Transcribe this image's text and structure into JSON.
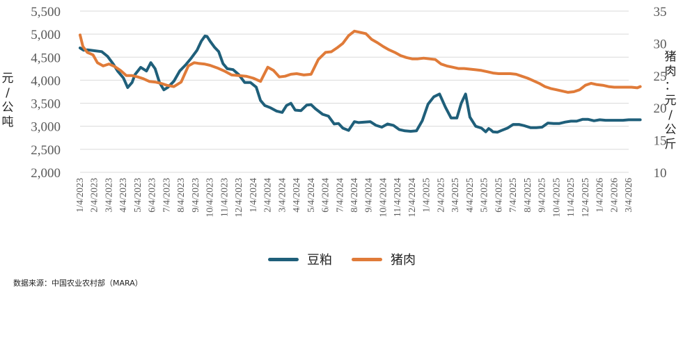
{
  "chart_data": {
    "type": "line",
    "y_left": {
      "label": "元/公吨",
      "ticks": [
        "5,500",
        "5,000",
        "4,500",
        "4,000",
        "3,500",
        "3,000",
        "2,500",
        "2,000"
      ],
      "range": [
        2000,
        5500
      ]
    },
    "y_right": {
      "label": "猪肉：元/公斤",
      "ticks": [
        "35",
        "30",
        "25",
        "20",
        "15",
        "10"
      ],
      "range": [
        10,
        35
      ]
    },
    "x_ticks": [
      "1/4/2023",
      "2/4/2023",
      "3/4/2023",
      "4/4/2023",
      "5/4/2023",
      "6/4/2023",
      "7/4/2023",
      "8/4/2023",
      "9/4/2023",
      "10/4/2023",
      "11/4/2023",
      "12/4/2023",
      "1/4/2024",
      "2/4/2024",
      "3/4/2024",
      "4/4/2024",
      "5/4/2024",
      "6/4/2024",
      "7/4/2024",
      "8/4/2024",
      "9/4/2024",
      "10/4/2024",
      "11/4/2024",
      "12/4/2024",
      "1/4/2025",
      "2/4/2025",
      "3/4/2025",
      "4/4/2025",
      "5/4/2025",
      "6/4/2025",
      "7/4/2025",
      "8/4/2025",
      "9/4/2025",
      "10/4/2025",
      "11/4/2025",
      "12/4/2025",
      "1/4/2026",
      "2/4/2026",
      "3/4/2026"
    ],
    "series": [
      {
        "name": "豆粕",
        "axis": "left",
        "color": "#1f5f7a",
        "x": [
          0,
          0.25,
          0.5,
          1,
          1.5,
          1.9,
          2.3,
          2.6,
          3,
          3.3,
          3.6,
          3.8,
          4.2,
          4.6,
          4.9,
          5.2,
          5.5,
          5.8,
          6.1,
          6.5,
          6.9,
          7.3,
          7.7,
          8.1,
          8.4,
          8.65,
          8.8,
          9,
          9.3,
          9.6,
          9.9,
          10.2,
          10.6,
          11,
          11.4,
          11.8,
          12.2,
          12.5,
          12.8,
          13.2,
          13.6,
          14,
          14.3,
          14.6,
          14.9,
          15.3,
          15.7,
          16,
          16.3,
          16.8,
          17.2,
          17.6,
          17.9,
          18.2,
          18.6,
          19,
          19.3,
          19.7,
          20.1,
          20.5,
          20.9,
          21.3,
          21.7,
          22.1,
          22.5,
          22.9,
          23.3,
          23.7,
          24.1,
          24.5,
          24.9,
          25.3,
          25.7,
          26.1,
          26.4,
          26.7,
          27,
          27.4,
          27.8,
          28.1,
          28.3,
          28.45,
          28.6,
          28.9,
          29.2,
          29.6,
          30,
          30.4,
          30.8,
          31.2,
          31.6,
          32,
          32.4,
          32.8,
          33.2,
          33.6,
          34,
          34.4,
          34.8,
          35.2,
          35.6,
          36,
          36.4,
          36.8,
          37.2,
          37.6,
          38,
          38.4,
          38.8
        ],
        "values": [
          4700,
          4650,
          4660,
          4640,
          4620,
          4520,
          4350,
          4200,
          4050,
          3840,
          3950,
          4120,
          4280,
          4200,
          4380,
          4250,
          3950,
          3790,
          3850,
          3980,
          4200,
          4330,
          4480,
          4650,
          4850,
          4960,
          4950,
          4850,
          4720,
          4620,
          4360,
          4250,
          4230,
          4120,
          3950,
          3950,
          3850,
          3560,
          3450,
          3400,
          3330,
          3300,
          3450,
          3500,
          3350,
          3340,
          3460,
          3470,
          3380,
          3260,
          3220,
          3050,
          3060,
          2960,
          2910,
          3100,
          3080,
          3090,
          3100,
          3020,
          2980,
          3050,
          3020,
          2930,
          2900,
          2890,
          2900,
          3120,
          3480,
          3640,
          3700,
          3420,
          3180,
          3180,
          3500,
          3700,
          3200,
          3000,
          2960,
          2880,
          2950,
          2920,
          2880,
          2870,
          2910,
          2960,
          3040,
          3040,
          3010,
          2970,
          2970,
          2980,
          3070,
          3060,
          3060,
          3090,
          3110,
          3110,
          3150,
          3150,
          3120,
          3140,
          3130,
          3130,
          3130,
          3130,
          3140,
          3140,
          3140
        ]
      },
      {
        "name": "猪肉",
        "axis": "right",
        "color": "#e07b39",
        "x": [
          0,
          0.2,
          0.5,
          0.9,
          1.2,
          1.6,
          2,
          2.4,
          2.8,
          3.2,
          3.6,
          4,
          4.4,
          4.8,
          5.2,
          5.6,
          6,
          6.5,
          7,
          7.5,
          7.9,
          8.2,
          8.6,
          9,
          9.5,
          10,
          10.5,
          11,
          11.5,
          12,
          12.5,
          13,
          13.4,
          13.8,
          14.2,
          14.6,
          15,
          15.5,
          16,
          16.5,
          17,
          17.4,
          17.8,
          18.2,
          18.6,
          19,
          19.4,
          19.8,
          20.2,
          20.6,
          21,
          21.4,
          21.8,
          22.2,
          22.6,
          23,
          23.4,
          23.8,
          24.2,
          24.6,
          25,
          25.4,
          25.8,
          26.2,
          26.6,
          27,
          27.4,
          27.8,
          28.2,
          28.6,
          29,
          29.4,
          29.8,
          30.2,
          30.6,
          31,
          31.4,
          31.8,
          32.2,
          32.6,
          33,
          33.4,
          33.8,
          34.2,
          34.6,
          35,
          35.4,
          35.8,
          36.2,
          36.6,
          37,
          37.4,
          37.8,
          38.2,
          38.6,
          38.8
        ],
        "values": [
          31.3,
          29.5,
          28.6,
          28.2,
          27,
          26.5,
          26.8,
          26.4,
          25.8,
          25,
          25,
          24.8,
          24.5,
          24.1,
          24,
          23.8,
          23.5,
          23.3,
          24,
          26.5,
          27,
          26.9,
          26.8,
          26.6,
          26.2,
          25.7,
          25.1,
          25,
          24.9,
          24.6,
          24.1,
          26.3,
          25.8,
          24.8,
          24.9,
          25.2,
          25.3,
          25.1,
          25.2,
          27.5,
          28.6,
          28.7,
          29.3,
          30,
          31.2,
          31.9,
          31.7,
          31.5,
          30.6,
          30.1,
          29.5,
          29,
          28.6,
          28.1,
          27.8,
          27.6,
          27.6,
          27.7,
          27.6,
          27.5,
          26.8,
          26.5,
          26.3,
          26.1,
          26.1,
          26,
          25.9,
          25.8,
          25.6,
          25.4,
          25.3,
          25.3,
          25.3,
          25.2,
          24.9,
          24.6,
          24.2,
          23.8,
          23.3,
          23,
          22.8,
          22.6,
          22.4,
          22.5,
          22.8,
          23.5,
          23.8,
          23.6,
          23.5,
          23.3,
          23.2,
          23.2,
          23.2,
          23.2,
          23.1,
          23.3
        ]
      }
    ],
    "legend": {
      "placement": "bottom"
    }
  },
  "source": "数据来源：中国农业农村部（MARA）"
}
